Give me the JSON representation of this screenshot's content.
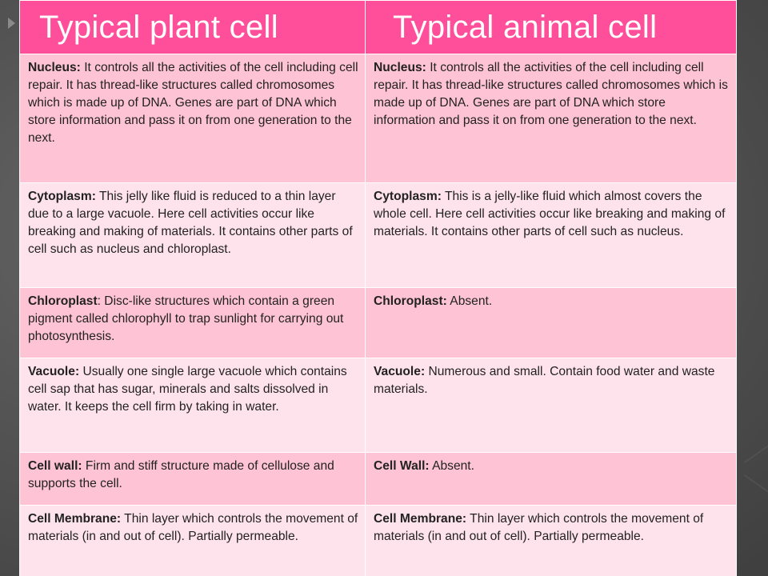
{
  "header": {
    "plant_title": "Typical plant cell",
    "animal_title": "Typical animal cell"
  },
  "rows": [
    {
      "plant": {
        "term": "Nucleus:",
        "text": " It controls all the activities of the cell including cell repair. It has thread-like structures called chromosomes which is made up of DNA. Genes are part of DNA which store information and pass it on from one generation to the next."
      },
      "animal": {
        "term": "Nucleus:",
        "text": " It controls all the activities of the cell including cell repair. It has thread-like structures called chromosomes which is made up of DNA. Genes are part of DNA which store information and pass it on from one generation to the next."
      }
    },
    {
      "plant": {
        "term": "Cytoplasm:",
        "text": " This jelly like fluid is reduced to a thin layer due to a large vacuole. Here cell activities occur like breaking and making of materials. It contains other parts of cell such as nucleus and chloroplast."
      },
      "animal": {
        "term": "Cytoplasm:",
        "text": " This is a jelly-like fluid which almost covers the whole cell. Here cell activities occur like breaking and making of materials. It contains other parts of cell such as nucleus."
      }
    },
    {
      "plant": {
        "term": "Chloroplast",
        "text": ": Disc-like structures which contain a green pigment called chlorophyll to trap sunlight for carrying out photosynthesis."
      },
      "animal": {
        "term": "Chloroplast:",
        "text": " Absent."
      }
    },
    {
      "plant": {
        "term": "Vacuole:",
        "text": " Usually one single large vacuole which contains cell sap that has sugar, minerals and salts dissolved in water. It keeps the cell firm by taking in water."
      },
      "animal": {
        "term": "Vacuole:",
        "text": " Numerous and small. Contain food water and waste materials."
      }
    },
    {
      "plant": {
        "term": "Cell wall:",
        "text": " Firm and stiff structure made of cellulose and supports the cell."
      },
      "animal": {
        "term": "Cell Wall:",
        "text": " Absent."
      }
    },
    {
      "plant": {
        "term": "Cell Membrane:",
        "text": " Thin layer which controls the movement of materials (in and out of cell). Partially permeable."
      },
      "animal": {
        "term": "Cell Membrane:",
        "text": " Thin layer which controls the movement of materials (in and out of cell). Partially permeable."
      }
    }
  ],
  "colors": {
    "header_bg": "#ff4f9b",
    "row_dark": "#ffc3d6",
    "row_light": "#ffe3ec"
  }
}
